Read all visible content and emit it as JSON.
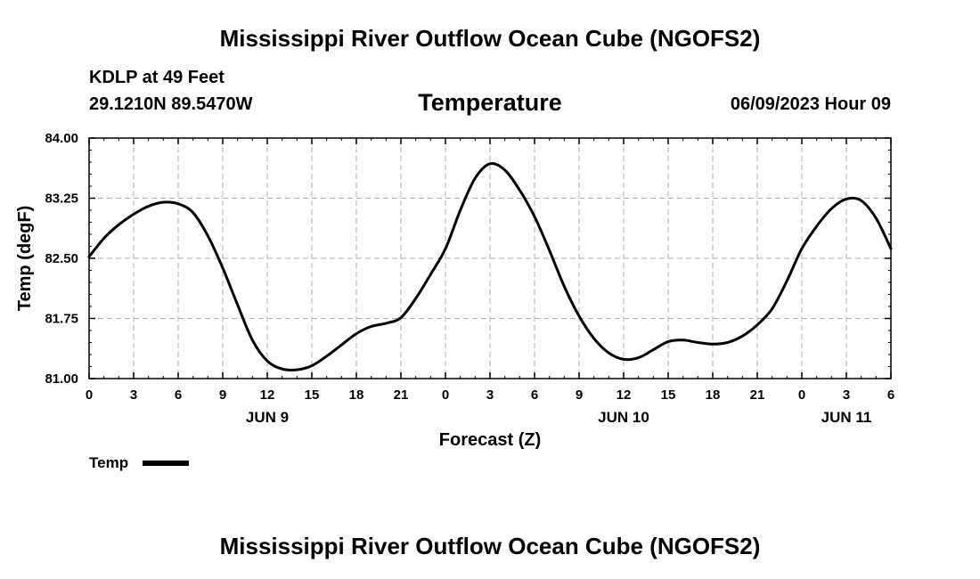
{
  "header": {
    "title": "Mississippi River Outflow Ocean Cube (NGOFS2)",
    "station": "KDLP at 49 Feet",
    "coords": "29.1210N  89.5470W",
    "subtitle": "Temperature",
    "datetime": "06/09/2023 Hour 09"
  },
  "footer": {
    "title": "Mississippi River Outflow Ocean Cube (NGOFS2)"
  },
  "chart_data": {
    "type": "line",
    "title": "Temperature",
    "xlabel": "Forecast (Z)",
    "ylabel": "Temp (degF)",
    "x_unit": "hours since 2023-06-09 00Z",
    "xlim": [
      0,
      54
    ],
    "ylim": [
      81.0,
      84.0
    ],
    "grid": true,
    "yticks": [
      81.0,
      81.75,
      82.5,
      83.25,
      84.0
    ],
    "ytick_labels": [
      "81.00",
      "81.75",
      "82.50",
      "83.25",
      "84.00"
    ],
    "xticks": [
      0,
      3,
      6,
      9,
      12,
      15,
      18,
      21,
      24,
      27,
      30,
      33,
      36,
      39,
      42,
      45,
      48,
      51,
      54
    ],
    "xtick_labels": [
      "0",
      "3",
      "6",
      "9",
      "12",
      "15",
      "18",
      "21",
      "0",
      "3",
      "6",
      "9",
      "12",
      "15",
      "18",
      "21",
      "0",
      "3",
      "6"
    ],
    "day_labels": [
      {
        "x": 12,
        "label": "JUN 9"
      },
      {
        "x": 36,
        "label": "JUN 10"
      },
      {
        "x": 51,
        "label": "JUN 11"
      }
    ],
    "legend": {
      "label": "Temp",
      "position": "bottom-left"
    },
    "series": [
      {
        "name": "Temp",
        "color": "#000000",
        "x": [
          0,
          1,
          2,
          3,
          4,
          5,
          6,
          7,
          8,
          9,
          10,
          11,
          12,
          13,
          14,
          15,
          16,
          17,
          18,
          19,
          20,
          21,
          22,
          23,
          24,
          25,
          26,
          27,
          28,
          29,
          30,
          31,
          32,
          33,
          34,
          35,
          36,
          37,
          38,
          39,
          40,
          41,
          42,
          43,
          44,
          45,
          46,
          47,
          48,
          49,
          50,
          51,
          52,
          53,
          54
        ],
        "values": [
          82.52,
          82.75,
          82.92,
          83.05,
          83.15,
          83.2,
          83.18,
          83.07,
          82.78,
          82.38,
          81.92,
          81.48,
          81.22,
          81.12,
          81.11,
          81.16,
          81.28,
          81.42,
          81.56,
          81.65,
          81.69,
          81.76,
          82.0,
          82.3,
          82.62,
          83.1,
          83.5,
          83.68,
          83.6,
          83.35,
          83.02,
          82.6,
          82.15,
          81.78,
          81.5,
          81.32,
          81.24,
          81.26,
          81.36,
          81.46,
          81.48,
          81.45,
          81.43,
          81.45,
          81.53,
          81.67,
          81.87,
          82.22,
          82.62,
          82.9,
          83.12,
          83.24,
          83.22,
          83.0,
          82.62
        ]
      }
    ]
  }
}
